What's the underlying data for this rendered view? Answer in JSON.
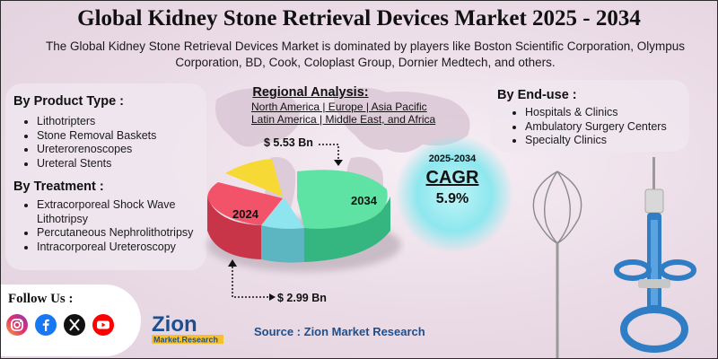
{
  "title": "Global Kidney Stone Retrieval Devices Market 2025 - 2034",
  "subtitle": "The Global Kidney Stone Retrieval Devices Market is dominated by players like Boston Scientific Corporation, Olympus Corporation, BD, Cook, Coloplast Group, Dornier Medtech, and others.",
  "product_type": {
    "title": "By Product Type :",
    "items": [
      "Lithotripters",
      "Stone Removal Baskets",
      "Ureterorenoscopes",
      "Ureteral Stents"
    ]
  },
  "treatment": {
    "title": "By Treatment :",
    "items": [
      "Extracorporeal Shock Wave Lithotripsy",
      "Percutaneous Nephrolithotripsy",
      "Intracorporeal Ureteroscopy"
    ]
  },
  "regional": {
    "title": "Regional Analysis:",
    "line1": "North America | Europe | Asia Pacific",
    "line2": "Latin America | Middle East, and Africa"
  },
  "end_use": {
    "title": "By End-use :",
    "items": [
      "Hospitals & Clinics",
      "Ambulatory Surgery Centers",
      "Specialty Clinics"
    ]
  },
  "cagr": {
    "years": "2025-2034",
    "label": "CAGR",
    "value": "5.9%"
  },
  "follow": {
    "label": "Follow Us :"
  },
  "source": "Source : Zion Market Research",
  "logo": {
    "name": "Zion",
    "sub": "Market.Research"
  },
  "colors": {
    "slice_2034": "#5fe3a4",
    "slice_2024": "#f25369",
    "slice_yellow": "#f6d934",
    "slice_cyan": "#8ee4ef",
    "accent_blue": "#1d4f8f"
  },
  "chart_data": {
    "type": "pie",
    "style": "3d",
    "title": "",
    "slice_labels": [
      "2034",
      "2024"
    ],
    "slices": [
      {
        "label": "2034",
        "callout": "$ 5.53 Bn",
        "value": 5.53
      },
      {
        "label": "2024",
        "callout": "$ 2.99 Bn",
        "value": 2.99
      }
    ]
  }
}
